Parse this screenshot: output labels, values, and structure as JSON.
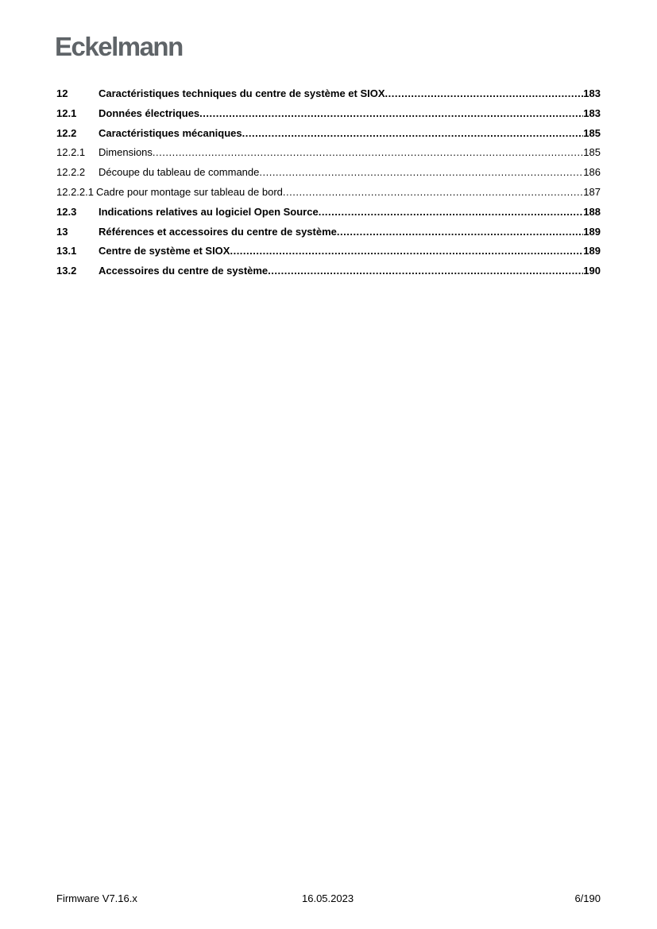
{
  "header": {
    "logo": "Eckelmann"
  },
  "toc": [
    {
      "num": "12",
      "title": "Caractéristiques techniques du centre de système et SIOX",
      "page": "183",
      "bold": true
    },
    {
      "num": "12.1",
      "title": "Données électriques",
      "page": "183",
      "bold": true
    },
    {
      "num": "12.2",
      "title": "Caractéristiques mécaniques",
      "page": "185",
      "bold": true
    },
    {
      "num": "12.2.1",
      "title": "Dimensions",
      "page": "185",
      "bold": false
    },
    {
      "num": "12.2.2",
      "title": "Découpe du tableau de commande",
      "page": "186",
      "bold": false
    },
    {
      "num": "12.2.2.1",
      "title": "Cadre pour montage sur tableau de bord",
      "page": "187",
      "bold": false
    },
    {
      "num": "12.3",
      "title": "Indications relatives au logiciel Open Source",
      "page": "188",
      "bold": true
    },
    {
      "num": "13",
      "title": "Références et accessoires du centre de système",
      "page": "189",
      "bold": true
    },
    {
      "num": "13.1",
      "title": "Centre de système et SIOX",
      "page": "189",
      "bold": true
    },
    {
      "num": "13.2",
      "title": "Accessoires du centre de système",
      "page": "190",
      "bold": true
    }
  ],
  "footer": {
    "left": "Firmware V7.16.x",
    "center": "16.05.2023",
    "right": "6/190"
  }
}
